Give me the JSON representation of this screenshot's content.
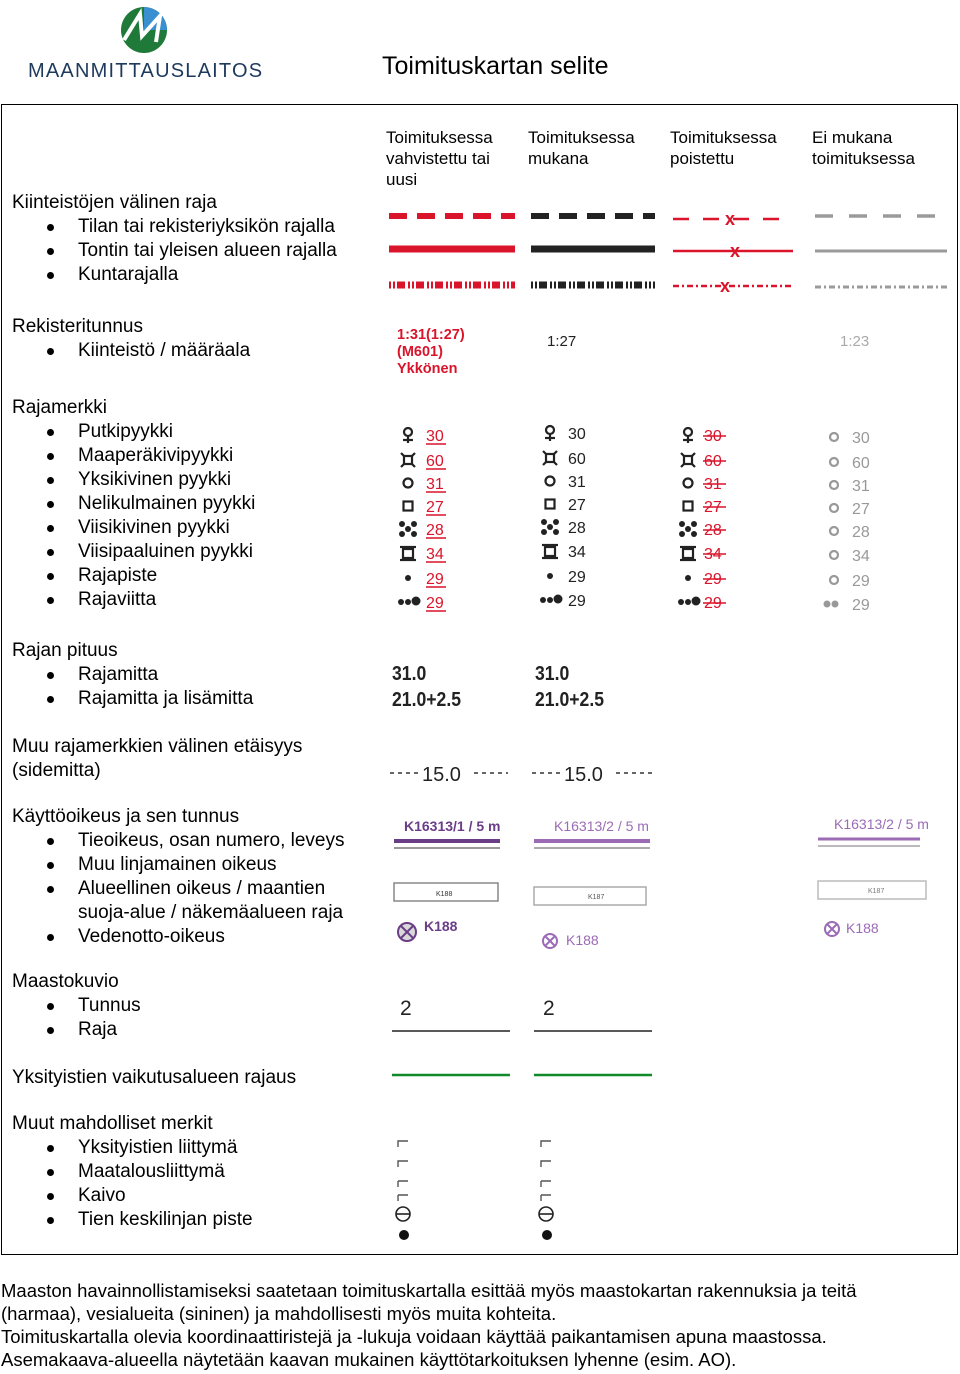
{
  "header": {
    "logo_text": "MAANMITTAUSLAITOS",
    "title": "Toimituskartan selite"
  },
  "columns": [
    "Toimituksessa vahvistettu tai uusi",
    "Toimituksessa mukana",
    "Toimituksessa poistettu",
    "Ei mukana toimituksessa"
  ],
  "colors": {
    "red": "#d9142b",
    "black": "#222222",
    "gray": "#9a9a9a",
    "green": "#118a2a",
    "logo_blue": "#1d3a5c"
  },
  "sections": [
    {
      "title": "Kiinteistöjen välinen raja",
      "items": [
        "Tilan tai rekisteriyksikön rajalla",
        "Tontin tai yleisen alueen rajalla",
        "Kuntarajalla"
      ]
    },
    {
      "title": "Rekisteritunnus",
      "items": [
        "Kiinteistö / määräala"
      ]
    },
    {
      "title": "Rajamerkki",
      "items": [
        "Putkipyykki",
        "Maaperäkivipyykki",
        "Yksikivinen pyykki",
        "Nelikulmainen pyykki",
        "Viisikivinen pyykki",
        "Viisipaaluinen pyykki",
        "Rajapiste",
        "Rajaviitta"
      ]
    },
    {
      "title": "Rajan pituus",
      "items": [
        "Rajamitta",
        "Rajamitta ja lisämitta"
      ]
    },
    {
      "title": "Muu rajamerkkien välinen etäisyys",
      "title2": "(sidemitta)",
      "items": []
    },
    {
      "title": "Käyttöoikeus ja sen tunnus",
      "items": [
        "Tieoikeus, osan numero, leveys",
        "Muu linjamainen oikeus",
        "Alueellinen oikeus / maantien",
        "Vedenotto-oikeus"
      ],
      "cont": "suoja-alue / näkemäalueen raja"
    },
    {
      "title": "Maastokuvio",
      "items": [
        "Tunnus",
        "Raja"
      ]
    },
    {
      "title": "Yksityistien vaikutusalueen rajaus",
      "items": []
    },
    {
      "title": "Muut mahdolliset merkit",
      "items": [
        "Yksityistien liittymä",
        "Maatalousliittymä",
        "Kaivo",
        "Tien keskilinjan piste"
      ]
    }
  ],
  "symbols": {
    "reg": {
      "new_line1": "1:31(1:27)",
      "new_line2": "(M601)",
      "new_line3": "Ykkönen",
      "incl": "1:27",
      "excl": "1:23"
    },
    "marks_new": [
      "30",
      "60",
      "31",
      "27",
      "28",
      "34",
      "29",
      "29"
    ],
    "marks_incl": [
      "30",
      "60",
      "31",
      "27",
      "28",
      "34",
      "29",
      "29"
    ],
    "marks_removed": [
      "30",
      "60",
      "31",
      "27",
      "28",
      "34",
      "29",
      "29"
    ],
    "marks_excl": [
      "30",
      "60",
      "31",
      "27",
      "28",
      "34",
      "29",
      "29"
    ],
    "length1": "31.0",
    "length2": "21.0+2.5",
    "side": "15.0",
    "rights_new": "K16313/1 / 5 m",
    "rights_incl": "K16313/2 / 5 m",
    "rights_excl": "K16313/2 / 5 m",
    "rights_small_new": "K188",
    "rights_small_incl": "K187",
    "rights_small_excl": "K187",
    "water_new": "K188",
    "water_incl": "K188",
    "water_excl": "K188",
    "terrain": "2"
  },
  "footer": [
    "Maaston havainnollistamiseksi saatetaan toimituskartalla esittää myös maastokartan rakennuksia ja teitä",
    "(harmaa), vesialueita (sininen) ja mahdollisesti myös muita kohteita.",
    "Toimituskartalla olevia koordinaattiristejä ja -lukuja voidaan käyttää paikantamisen apuna maastossa.",
    "Asemakaava-alueella näytetään kaavan mukainen käyttötarkoituksen lyhenne (esim. AO)."
  ]
}
